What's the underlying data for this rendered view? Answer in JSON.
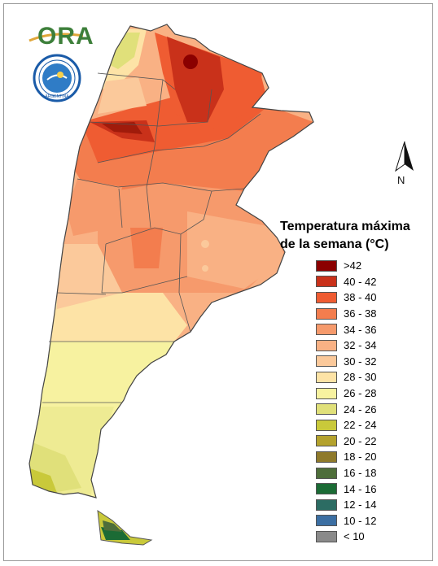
{
  "logo": {
    "text": "ORA",
    "icon": "ora-swoosh-logo"
  },
  "seal": {
    "icon": "smn-institutional-seal-icon",
    "inner_text": "ARGENTINA"
  },
  "north_arrow": {
    "label": "N",
    "icon": "north-arrow-icon"
  },
  "legend": {
    "title_line1": "Temperatura máxima",
    "title_line2": "de la semana (°C)",
    "items": [
      {
        "label": ">42",
        "color": "#8b0000"
      },
      {
        "label": "40 - 42",
        "color": "#c9311a"
      },
      {
        "label": "38 - 40",
        "color": "#ef5c32"
      },
      {
        "label": "36 - 38",
        "color": "#f37d4e"
      },
      {
        "label": "34 - 36",
        "color": "#f69a6c"
      },
      {
        "label": "32 - 34",
        "color": "#f9b184"
      },
      {
        "label": "30 - 32",
        "color": "#fbc99b"
      },
      {
        "label": "28 - 30",
        "color": "#fde3a6"
      },
      {
        "label": "26 - 28",
        "color": "#f7f2a0"
      },
      {
        "label": "24 - 26",
        "color": "#e0e07a"
      },
      {
        "label": "22 - 24",
        "color": "#c9c93a"
      },
      {
        "label": "20 - 22",
        "color": "#b4a22d"
      },
      {
        "label": "18 - 20",
        "color": "#8f7a2b"
      },
      {
        "label": "16 - 18",
        "color": "#4e6e3a"
      },
      {
        "label": "14 - 16",
        "color": "#1b6b35"
      },
      {
        "label": "12 - 14",
        "color": "#2c6c63"
      },
      {
        "label": "10 - 12",
        "color": "#3c6fa3"
      },
      {
        "label": "< 10",
        "color": "#8a8a8a"
      }
    ]
  }
}
